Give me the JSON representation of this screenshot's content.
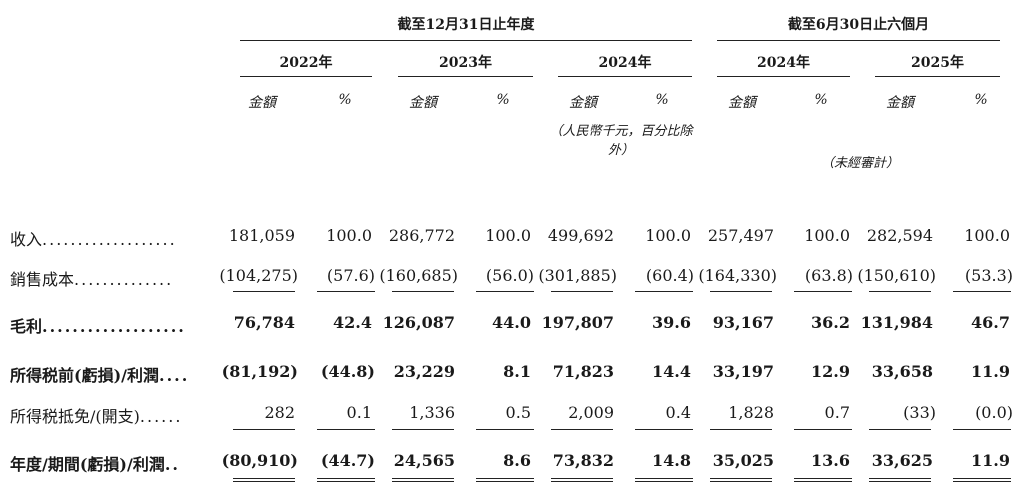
{
  "header": {
    "group_year": "截至12月31日止年度",
    "group_half": "截至6月30日止六個月",
    "years": [
      "2022年",
      "2023年",
      "2024年",
      "2024年",
      "2025年"
    ],
    "amount": "金額",
    "pct": "%",
    "unit_note": "（人民幣千元，百分比除外）",
    "unaudited": "（未經審計）"
  },
  "rows": [
    {
      "label": "收入",
      "dots": "...................",
      "bold": false,
      "values": [
        "181,059",
        "100.0",
        "286,772",
        "100.0",
        "499,692",
        "100.0",
        "257,497",
        "100.0",
        "282,594",
        "100.0"
      ]
    },
    {
      "label": "銷售成本",
      "dots": "..............",
      "bold": false,
      "values": [
        "(104,275)",
        "(57.6)",
        "(160,685)",
        "(56.0)",
        "(301,885)",
        "(60.4)",
        "(164,330)",
        "(63.8)",
        "(150,610)",
        "(53.3)"
      ]
    },
    {
      "label": "毛利",
      "dots": "...................",
      "bold": true,
      "values": [
        "76,784",
        "42.4",
        "126,087",
        "44.0",
        "197,807",
        "39.6",
        "93,167",
        "36.2",
        "131,984",
        "46.7"
      ]
    },
    {
      "label": "所得税前(虧損)/利潤",
      "dots": "....",
      "bold": true,
      "values": [
        "(81,192)",
        "(44.8)",
        "23,229",
        "8.1",
        "71,823",
        "14.4",
        "33,197",
        "12.9",
        "33,658",
        "11.9"
      ]
    },
    {
      "label": "所得税抵免/(開支)",
      "dots": "......",
      "bold": false,
      "values": [
        "282",
        "0.1",
        "1,336",
        "0.5",
        "2,009",
        "0.4",
        "1,828",
        "0.7",
        "(33)",
        "(0.0)"
      ]
    },
    {
      "label": "年度/期間(虧損)/利潤",
      "dots": "..",
      "bold": true,
      "values": [
        "(80,910)",
        "(44.7)",
        "24,565",
        "8.6",
        "73,832",
        "14.8",
        "35,025",
        "13.6",
        "33,625",
        "11.9"
      ]
    }
  ]
}
